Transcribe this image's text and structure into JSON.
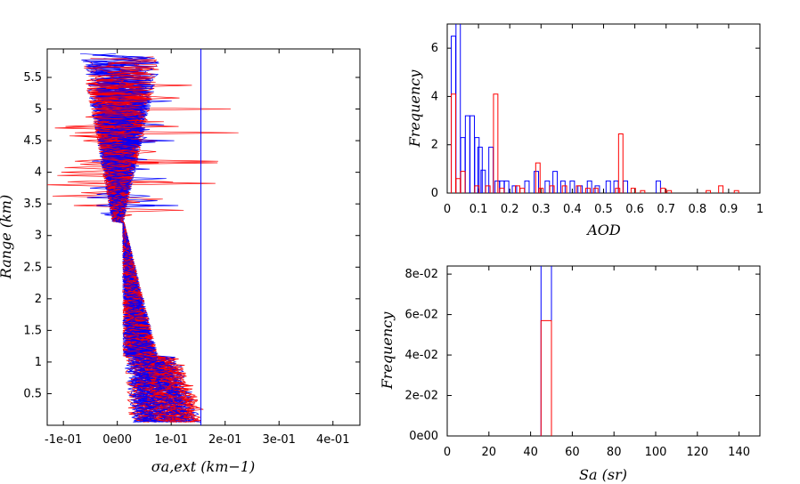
{
  "chart_data": [
    {
      "type": "line",
      "xlabel": "σa,ext (km−1)",
      "ylabel": "Range (km)",
      "xlim": [
        -0.13,
        0.45
      ],
      "ylim": [
        0,
        5.95
      ],
      "x_ticks": [
        {
          "v": -0.1,
          "label": "-1e-01"
        },
        {
          "v": 0.0,
          "label": "0e00"
        },
        {
          "v": 0.1,
          "label": "1e-01"
        },
        {
          "v": 0.2,
          "label": "2e-01"
        },
        {
          "v": 0.3,
          "label": "3e-01"
        },
        {
          "v": 0.4,
          "label": "4e-01"
        }
      ],
      "y_ticks": [
        {
          "v": 0.5,
          "label": "0.5"
        },
        {
          "v": 1.0,
          "label": "1"
        },
        {
          "v": 1.5,
          "label": "1.5"
        },
        {
          "v": 2.0,
          "label": "2"
        },
        {
          "v": 2.5,
          "label": "2.5"
        },
        {
          "v": 3.0,
          "label": "3"
        },
        {
          "v": 3.5,
          "label": "3.5"
        },
        {
          "v": 4.0,
          "label": "4"
        },
        {
          "v": 4.5,
          "label": "4.5"
        },
        {
          "v": 5.0,
          "label": "5"
        },
        {
          "v": 5.5,
          "label": "5.5"
        }
      ],
      "series_colors": [
        "#ff0000",
        "#0000ff"
      ],
      "reference_line_x": 0.155,
      "profile_count": 60,
      "grid": false
    },
    {
      "type": "bar",
      "xlabel": "AOD",
      "ylabel": "Frequency",
      "xlim": [
        0,
        1
      ],
      "ylim": [
        0,
        7
      ],
      "x_ticks": [
        {
          "v": 0,
          "label": "0"
        },
        {
          "v": 0.1,
          "label": "0.1"
        },
        {
          "v": 0.2,
          "label": "0.2"
        },
        {
          "v": 0.3,
          "label": "0.3"
        },
        {
          "v": 0.4,
          "label": "0.4"
        },
        {
          "v": 0.5,
          "label": "0.5"
        },
        {
          "v": 0.6,
          "label": "0.6"
        },
        {
          "v": 0.7,
          "label": "0.7"
        },
        {
          "v": 0.8,
          "label": "0.8"
        },
        {
          "v": 0.9,
          "label": "0.9"
        },
        {
          "v": 1.0,
          "label": "1"
        }
      ],
      "y_ticks": [
        {
          "v": 0,
          "label": "0"
        },
        {
          "v": 2,
          "label": "2"
        },
        {
          "v": 4,
          "label": "4"
        },
        {
          "v": 6,
          "label": "6"
        }
      ],
      "series": [
        {
          "color": "#0000ff",
          "bins": [
            [
              0.02,
              6.5
            ],
            [
              0.035,
              9.5
            ],
            [
              0.05,
              2.3
            ],
            [
              0.065,
              3.2
            ],
            [
              0.08,
              3.2
            ],
            [
              0.095,
              2.3
            ],
            [
              0.105,
              1.9
            ],
            [
              0.115,
              0.95
            ],
            [
              0.14,
              1.9
            ],
            [
              0.16,
              0.5
            ],
            [
              0.175,
              0.5
            ],
            [
              0.19,
              0.5
            ],
            [
              0.215,
              0.3
            ],
            [
              0.255,
              0.5
            ],
            [
              0.285,
              0.9
            ],
            [
              0.32,
              0.5
            ],
            [
              0.345,
              0.9
            ],
            [
              0.37,
              0.5
            ],
            [
              0.4,
              0.5
            ],
            [
              0.425,
              0.3
            ],
            [
              0.455,
              0.5
            ],
            [
              0.48,
              0.3
            ],
            [
              0.515,
              0.5
            ],
            [
              0.54,
              0.5
            ],
            [
              0.57,
              0.5
            ],
            [
              0.675,
              0.5
            ]
          ]
        },
        {
          "color": "#ff0000",
          "bins": [
            [
              0.02,
              4.1
            ],
            [
              0.035,
              0.6
            ],
            [
              0.05,
              0.9
            ],
            [
              0.095,
              0.3
            ],
            [
              0.13,
              0.3
            ],
            [
              0.155,
              4.1
            ],
            [
              0.175,
              0.2
            ],
            [
              0.225,
              0.3
            ],
            [
              0.24,
              0.2
            ],
            [
              0.29,
              1.25
            ],
            [
              0.3,
              0.2
            ],
            [
              0.335,
              0.3
            ],
            [
              0.375,
              0.3
            ],
            [
              0.42,
              0.3
            ],
            [
              0.45,
              0.2
            ],
            [
              0.475,
              0.2
            ],
            [
              0.545,
              0.2
            ],
            [
              0.555,
              2.45
            ],
            [
              0.595,
              0.2
            ],
            [
              0.625,
              0.1
            ],
            [
              0.69,
              0.2
            ],
            [
              0.71,
              0.1
            ],
            [
              0.835,
              0.1
            ],
            [
              0.875,
              0.3
            ],
            [
              0.925,
              0.1
            ]
          ]
        }
      ],
      "bin_width": 0.014,
      "grid": false
    },
    {
      "type": "bar",
      "xlabel": "Sa (sr)",
      "ylabel": "Frequency",
      "xlim": [
        0,
        150
      ],
      "ylim": [
        0,
        0.084
      ],
      "x_ticks": [
        {
          "v": 0,
          "label": "0"
        },
        {
          "v": 20,
          "label": "20"
        },
        {
          "v": 40,
          "label": "40"
        },
        {
          "v": 60,
          "label": "60"
        },
        {
          "v": 80,
          "label": "80"
        },
        {
          "v": 100,
          "label": "100"
        },
        {
          "v": 120,
          "label": "120"
        },
        {
          "v": 140,
          "label": "140"
        }
      ],
      "y_ticks": [
        {
          "v": 0,
          "label": "0e00"
        },
        {
          "v": 0.02,
          "label": "2e-02"
        },
        {
          "v": 0.04,
          "label": "4e-02"
        },
        {
          "v": 0.06,
          "label": "6e-02"
        },
        {
          "v": 0.08,
          "label": "8e-02"
        }
      ],
      "series": [
        {
          "color": "#0000ff",
          "bins": [
            [
              47.5,
              0.2
            ]
          ]
        },
        {
          "color": "#ff0000",
          "bins": [
            [
              47.5,
              0.057
            ]
          ]
        }
      ],
      "bin_width": 5,
      "grid": false
    }
  ]
}
